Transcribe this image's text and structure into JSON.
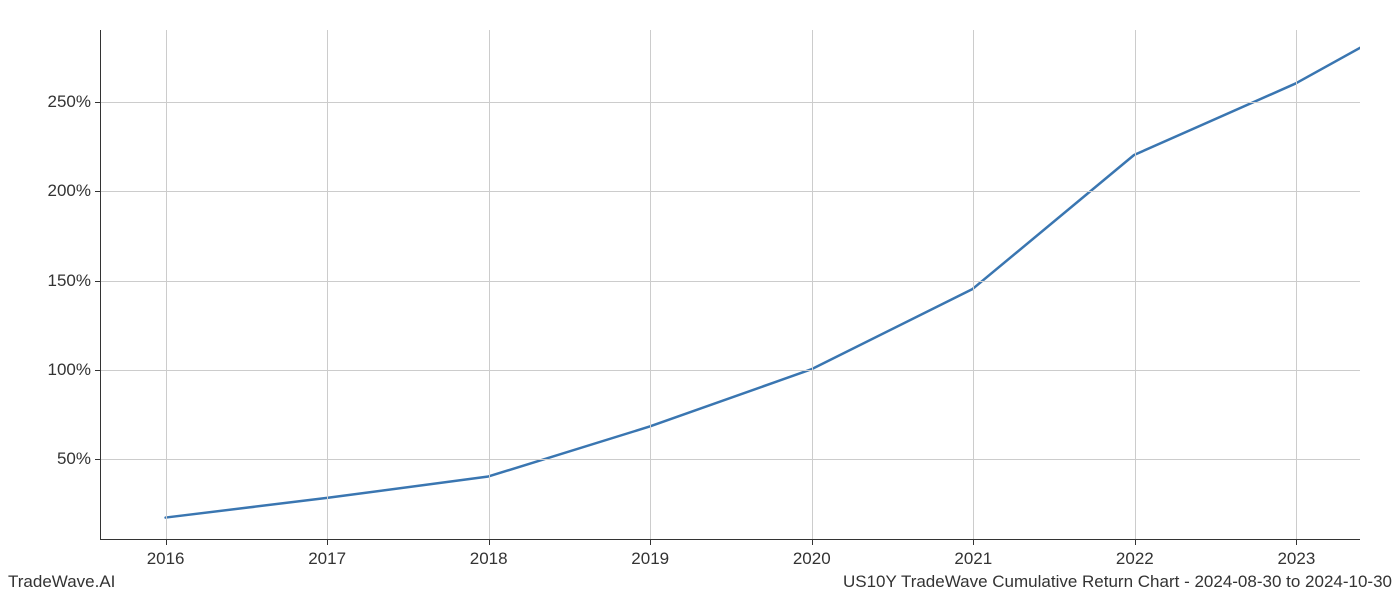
{
  "chart": {
    "type": "line",
    "x_values": [
      2016,
      2017,
      2018,
      2019,
      2020,
      2021,
      2022,
      2023,
      2023.4
    ],
    "y_values": [
      17,
      28,
      40,
      68,
      100,
      145,
      220,
      260,
      280
    ],
    "line_color": "#3a76b1",
    "line_width": 2.5,
    "background_color": "#ffffff",
    "grid_color": "#cccccc",
    "axis_color": "#333333",
    "xlim": [
      2015.6,
      2023.4
    ],
    "ylim": [
      5,
      290
    ],
    "x_ticks": [
      2016,
      2017,
      2018,
      2019,
      2020,
      2021,
      2022,
      2023
    ],
    "x_tick_labels": [
      "2016",
      "2017",
      "2018",
      "2019",
      "2020",
      "2021",
      "2022",
      "2023"
    ],
    "y_ticks": [
      50,
      100,
      150,
      200,
      250
    ],
    "y_tick_labels": [
      "50%",
      "100%",
      "150%",
      "200%",
      "250%"
    ],
    "tick_fontsize": 17,
    "footer_fontsize": 17
  },
  "footer": {
    "left": "TradeWave.AI",
    "right": "US10Y TradeWave Cumulative Return Chart - 2024-08-30 to 2024-10-30"
  }
}
